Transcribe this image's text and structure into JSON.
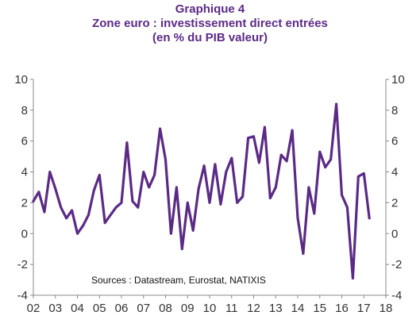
{
  "chart_data": {
    "type": "line",
    "title": "Graphique 4",
    "subtitle": "Zone euro : investissement direct entrées",
    "subtitle2": "(en % du PIB valeur)",
    "source": "Sources : Datastream, Eurostat, NATIXIS",
    "ylim": [
      -4,
      10
    ],
    "y_ticks": [
      -4,
      -2,
      0,
      2,
      4,
      6,
      8,
      10
    ],
    "y_tick_labels": [
      "-4",
      "-2",
      "0",
      "2",
      "4",
      "6",
      "8",
      "10"
    ],
    "xlim": [
      2002.0,
      2018.0
    ],
    "x_ticks": [
      2002,
      2003,
      2004,
      2005,
      2006,
      2007,
      2008,
      2009,
      2010,
      2011,
      2012,
      2013,
      2014,
      2015,
      2016,
      2017,
      2018
    ],
    "x_tick_labels": [
      "02",
      "03",
      "04",
      "05",
      "06",
      "07",
      "08",
      "09",
      "10",
      "11",
      "12",
      "13",
      "14",
      "15",
      "16",
      "17",
      "18"
    ],
    "line_color": "#5b2a86",
    "grid": false,
    "series": [
      {
        "x": [
          2002.0,
          2002.25,
          2002.5,
          2002.75,
          2003.0,
          2003.25,
          2003.5,
          2003.75,
          2004.0,
          2004.25,
          2004.5,
          2004.75,
          2005.0,
          2005.25,
          2005.5,
          2005.75,
          2006.0,
          2006.25,
          2006.5,
          2006.75,
          2007.0,
          2007.25,
          2007.5,
          2007.75,
          2008.0,
          2008.25,
          2008.5,
          2008.75,
          2009.0,
          2009.25,
          2009.5,
          2009.75,
          2010.0,
          2010.25,
          2010.5,
          2010.75,
          2011.0,
          2011.25,
          2011.5,
          2011.75,
          2012.0,
          2012.25,
          2012.5,
          2012.75,
          2013.0,
          2013.25,
          2013.5,
          2013.75,
          2014.0,
          2014.25,
          2014.5,
          2014.75,
          2015.0,
          2015.25,
          2015.5,
          2015.75,
          2016.0,
          2016.25,
          2016.5,
          2016.75,
          2017.0,
          2017.25
        ],
        "values": [
          2.1,
          2.7,
          1.4,
          4.0,
          2.9,
          1.7,
          1.0,
          1.5,
          0.0,
          0.5,
          1.2,
          2.8,
          3.8,
          0.7,
          1.2,
          1.7,
          2.0,
          5.9,
          2.1,
          1.7,
          4.0,
          3.0,
          3.8,
          6.8,
          4.8,
          0.0,
          3.0,
          -1.0,
          2.0,
          0.2,
          2.9,
          4.4,
          2.0,
          4.5,
          1.9,
          4.0,
          4.9,
          2.0,
          2.4,
          6.2,
          6.3,
          4.6,
          6.9,
          2.3,
          3.0,
          5.1,
          4.7,
          6.7,
          1.0,
          -1.3,
          3.0,
          1.3,
          5.3,
          4.3,
          4.8,
          8.4,
          2.5,
          1.7,
          -2.9,
          3.7,
          3.9,
          1.0
        ]
      }
    ]
  }
}
